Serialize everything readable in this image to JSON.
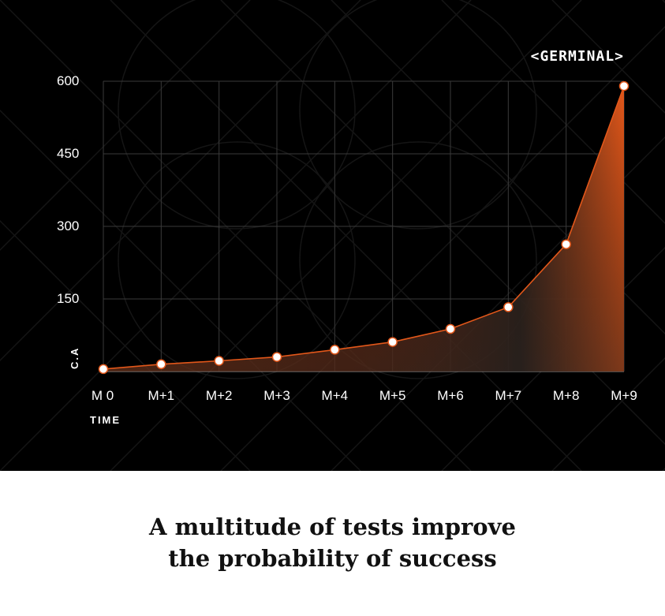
{
  "brand": "<GERMINAL>",
  "caption": {
    "line1": "A multitude of tests improve",
    "line2": "the probability of success"
  },
  "colors": {
    "background": "#000000",
    "accent": "#e2571a",
    "grid": "#3a3a3a",
    "text": "#ffffff"
  },
  "chart_data": {
    "type": "area",
    "title": "",
    "xlabel": "TIME",
    "ylabel": "C.A",
    "categories": [
      "M 0",
      "M+1",
      "M+2",
      "M+3",
      "M+4",
      "M+5",
      "M+6",
      "M+7",
      "M+8",
      "M+9"
    ],
    "values": [
      5,
      15,
      22,
      30,
      45,
      61,
      88,
      133,
      263,
      590
    ],
    "yticks": [
      150,
      300,
      450,
      600
    ],
    "ylim": [
      0,
      600
    ],
    "grid": true,
    "legend": "none"
  }
}
